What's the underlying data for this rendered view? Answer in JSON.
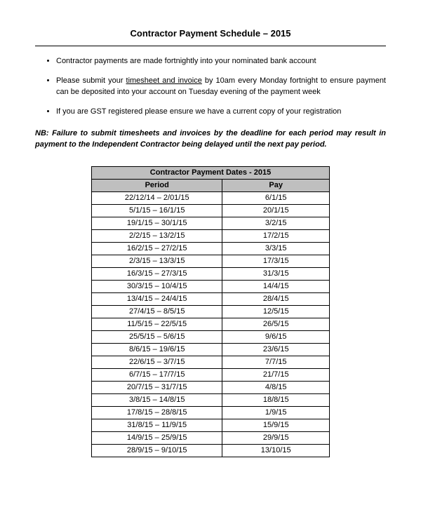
{
  "title": "Contractor Payment Schedule – 2015",
  "bullets": [
    {
      "pre": "Contractor payments are made fortnightly into your nominated bank account",
      "underline": "",
      "post": ""
    },
    {
      "pre": "Please submit your ",
      "underline": "timesheet and invoice",
      "post": " by 10am every Monday fortnight to ensure payment can be deposited into your account on Tuesday evening of the payment week"
    },
    {
      "pre": "If you are GST registered please ensure we have a current copy of your registration",
      "underline": "",
      "post": ""
    }
  ],
  "nb": "NB: Failure to submit timesheets and invoices by the deadline for each period may result in payment to the Independent Contractor being delayed until the next pay period.",
  "table": {
    "title": "Contractor Payment Dates - 2015",
    "columns": [
      "Period",
      "Pay"
    ],
    "rows": [
      [
        "22/12/14 – 2/01/15",
        "6/1/15"
      ],
      [
        "5/1/15 – 16/1/15",
        "20/1/15"
      ],
      [
        "19/1/15 – 30/1/15",
        "3/2/15"
      ],
      [
        "2/2/15 – 13/2/15",
        "17/2/15"
      ],
      [
        "16/2/15 – 27/2/15",
        "3/3/15"
      ],
      [
        "2/3/15 – 13/3/15",
        "17/3/15"
      ],
      [
        "16/3/15 – 27/3/15",
        "31/3/15"
      ],
      [
        "30/3/15 – 10/4/15",
        "14/4/15"
      ],
      [
        "13/4/15 – 24/4/15",
        "28/4/15"
      ],
      [
        "27/4/15 – 8/5/15",
        "12/5/15"
      ],
      [
        "11/5/15 – 22/5/15",
        "26/5/15"
      ],
      [
        "25/5/15 – 5/6/15",
        "9/6/15"
      ],
      [
        "8/6/15 – 19/6/15",
        "23/6/15"
      ],
      [
        "22/6/15 – 3/7/15",
        "7/7/15"
      ],
      [
        "6/7/15 – 17/7/15",
        "21/7/15"
      ],
      [
        "20/7/15 – 31/7/15",
        "4/8/15"
      ],
      [
        "3/8/15 – 14/8/15",
        "18/8/15"
      ],
      [
        "17/8/15 – 28/8/15",
        "1/9/15"
      ],
      [
        "31/8/15 – 11/9/15",
        "15/9/15"
      ],
      [
        "14/9/15 – 25/9/15",
        "29/9/15"
      ],
      [
        "28/9/15 – 9/10/15",
        "13/10/15"
      ]
    ]
  },
  "colors": {
    "header_bg": "#bfbfbf",
    "border": "#000000",
    "text": "#000000",
    "page_bg": "#ffffff"
  }
}
